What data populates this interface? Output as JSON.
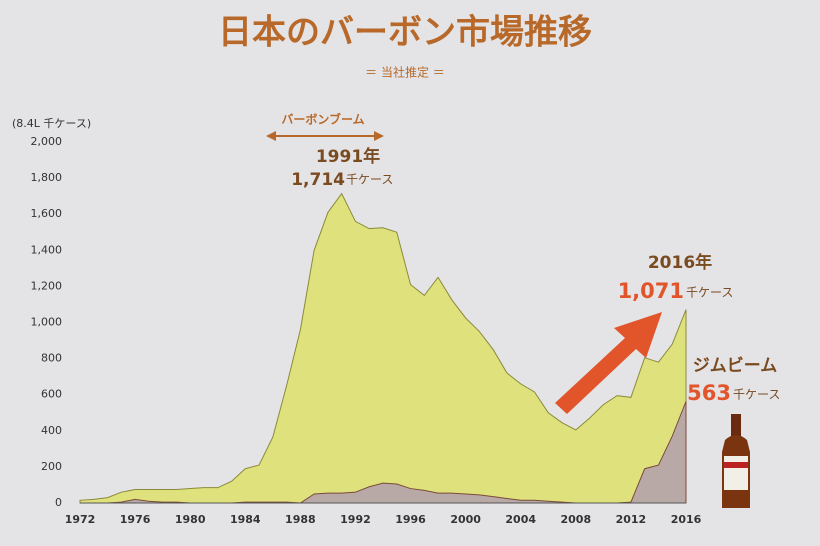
{
  "chart_data": {
    "type": "area",
    "title": "日本のバーボン市場推移",
    "subtitle": "＝ 当社推定 ＝",
    "y_unit": "(8.4L 千ケース)",
    "boom_label": "バーボンブーム",
    "annotations": [
      {
        "year": "1991年",
        "amount": "1,714",
        "unit": "千ケース"
      },
      {
        "year": "2016年",
        "amount": "1,071",
        "unit": "千ケース"
      },
      {
        "amount": "563",
        "unit": "千ケース"
      }
    ],
    "x": [
      1972,
      1973,
      1974,
      1975,
      1976,
      1977,
      1978,
      1979,
      1980,
      1981,
      1982,
      1983,
      1984,
      1985,
      1986,
      1987,
      1988,
      1989,
      1990,
      1991,
      1992,
      1993,
      1994,
      1995,
      1996,
      1997,
      1998,
      1999,
      2000,
      2001,
      2002,
      2003,
      2004,
      2005,
      2006,
      2007,
      2008,
      2009,
      2010,
      2011,
      2012,
      2013,
      2014,
      2015,
      2016
    ],
    "series": [
      {
        "color": "#dfe27c",
        "stroke": "#8a8a3a",
        "values": [
          15,
          20,
          30,
          60,
          75,
          75,
          75,
          75,
          80,
          85,
          85,
          120,
          190,
          210,
          365,
          650,
          960,
          1400,
          1610,
          1714,
          1560,
          1520,
          1525,
          1500,
          1210,
          1150,
          1250,
          1125,
          1025,
          950,
          850,
          720,
          660,
          615,
          500,
          445,
          405,
          470,
          545,
          595,
          585,
          805,
          780,
          880,
          1071
        ]
      },
      {
        "name": "ジムビーム",
        "color": "#b9a9a6",
        "stroke": "#7a4a3a",
        "values": [
          0,
          0,
          0,
          5,
          20,
          10,
          5,
          5,
          0,
          0,
          0,
          0,
          5,
          5,
          5,
          5,
          0,
          50,
          55,
          55,
          60,
          90,
          110,
          105,
          80,
          70,
          55,
          55,
          50,
          45,
          35,
          25,
          15,
          15,
          10,
          5,
          0,
          0,
          0,
          0,
          5,
          190,
          210,
          370,
          563
        ]
      }
    ],
    "xlim": [
      1972,
      2016
    ],
    "xticks": [
      1972,
      1976,
      1980,
      1984,
      1988,
      1992,
      1996,
      2000,
      2004,
      2008,
      2012,
      2016
    ],
    "ylim": [
      0,
      2000
    ],
    "yticks": [
      0,
      200,
      400,
      600,
      800,
      {
        "value": 1000,
        "label": "1,000"
      },
      {
        "value": 1200,
        "label": "1,200"
      },
      {
        "value": 1400,
        "label": "1,400"
      },
      {
        "value": 1600,
        "label": "1,600"
      },
      {
        "value": 1800,
        "label": "1,800"
      },
      {
        "value": 2000,
        "label": "2,000"
      }
    ],
    "grid": false
  }
}
